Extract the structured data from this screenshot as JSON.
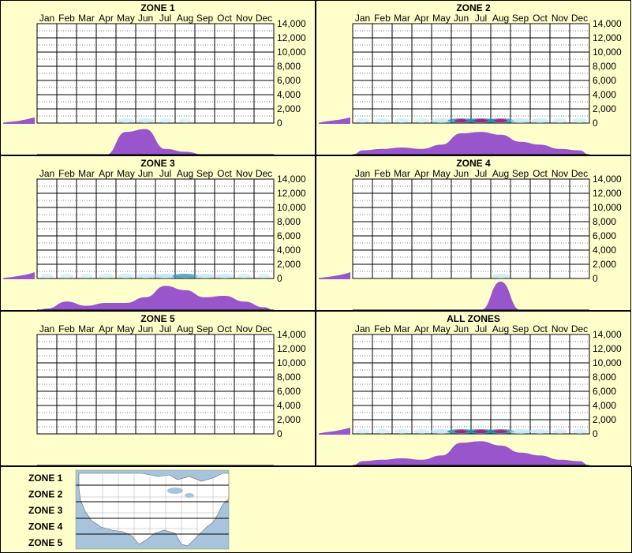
{
  "months": [
    "Jan",
    "Feb",
    "Mar",
    "Apr",
    "May",
    "Jun",
    "Jul",
    "Aug",
    "Sep",
    "Oct",
    "Nov",
    "Dec"
  ],
  "y_ticks": [
    "0",
    "2,000",
    "4,000",
    "6,000",
    "8,000",
    "10,000",
    "12,000",
    "14,000"
  ],
  "colors": {
    "background": "#ffffcc",
    "histogram": "#9955cc",
    "band_low": "#aaddee",
    "band_mid": "#2288bb",
    "band_high": "#cc0066",
    "map_water": "#a8c4dc",
    "map_land": "#ffffff"
  },
  "chart_data": [
    {
      "type": "heatmap",
      "title": "ZONE 1",
      "ylim": [
        0,
        14000
      ],
      "month_activity": [
        0,
        0,
        0,
        0,
        0.8,
        0.9,
        0.2,
        0.1,
        0,
        0,
        0,
        0
      ],
      "band_intensity": [
        0,
        0,
        0,
        0,
        0.25,
        0.3,
        0.05,
        0.03,
        0,
        0,
        0,
        0
      ],
      "elevation_profile": [
        0.05,
        0.08,
        0.1,
        0.13,
        0.17,
        0.22,
        0.28
      ]
    },
    {
      "type": "heatmap",
      "title": "ZONE 2",
      "ylim": [
        0,
        14000
      ],
      "month_activity": [
        0.15,
        0.2,
        0.25,
        0.2,
        0.35,
        0.75,
        0.8,
        0.7,
        0.45,
        0.35,
        0.2,
        0.15
      ],
      "band_intensity": [
        0.15,
        0.2,
        0.2,
        0.2,
        0.5,
        0.85,
        1.0,
        0.85,
        0.5,
        0.35,
        0.2,
        0.2
      ],
      "elevation_profile": [
        0.05,
        0.09,
        0.12,
        0.15,
        0.18,
        0.22,
        0.28
      ]
    },
    {
      "type": "heatmap",
      "title": "ZONE 3",
      "ylim": [
        0,
        14000
      ],
      "month_activity": [
        0.05,
        0.3,
        0.15,
        0.25,
        0.25,
        0.45,
        0.85,
        0.7,
        0.45,
        0.5,
        0.3,
        0.1
      ],
      "band_intensity": [
        0.05,
        0.1,
        0.05,
        0.2,
        0.25,
        0.35,
        0.7,
        0.75,
        0.45,
        0.35,
        0.15,
        0.05
      ],
      "elevation_profile": [
        0.05,
        0.08,
        0.11,
        0.14,
        0.18,
        0.23,
        0.3
      ]
    },
    {
      "type": "heatmap",
      "title": "ZONE 4",
      "ylim": [
        0,
        14000
      ],
      "month_activity": [
        0,
        0,
        0,
        0,
        0,
        0,
        0,
        1.0,
        0,
        0,
        0,
        0
      ],
      "band_intensity": [
        0,
        0,
        0,
        0,
        0,
        0,
        0,
        0.35,
        0,
        0,
        0,
        0
      ],
      "elevation_profile": [
        0.05,
        0.08,
        0.11,
        0.14,
        0.18,
        0.23,
        0.3
      ]
    },
    {
      "type": "heatmap",
      "title": "ZONE 5",
      "ylim": [
        0,
        14000
      ],
      "month_activity": [
        0,
        0,
        0,
        0,
        0,
        0,
        0,
        0,
        0,
        0,
        0,
        0
      ],
      "band_intensity": [
        0,
        0,
        0,
        0,
        0,
        0,
        0,
        0,
        0,
        0,
        0,
        0
      ],
      "elevation_profile": []
    },
    {
      "type": "heatmap",
      "title": "ALL ZONES",
      "ylim": [
        0,
        14000
      ],
      "month_activity": [
        0.15,
        0.2,
        0.25,
        0.2,
        0.35,
        0.8,
        0.85,
        0.7,
        0.45,
        0.35,
        0.2,
        0.15
      ],
      "band_intensity": [
        0.15,
        0.2,
        0.2,
        0.2,
        0.55,
        0.9,
        1.0,
        0.9,
        0.55,
        0.35,
        0.2,
        0.2
      ],
      "elevation_profile": [
        0.05,
        0.09,
        0.12,
        0.15,
        0.19,
        0.24,
        0.3
      ]
    }
  ],
  "legend": {
    "zones": [
      "ZONE 1",
      "ZONE 2",
      "ZONE 3",
      "ZONE 4",
      "ZONE 5"
    ]
  }
}
